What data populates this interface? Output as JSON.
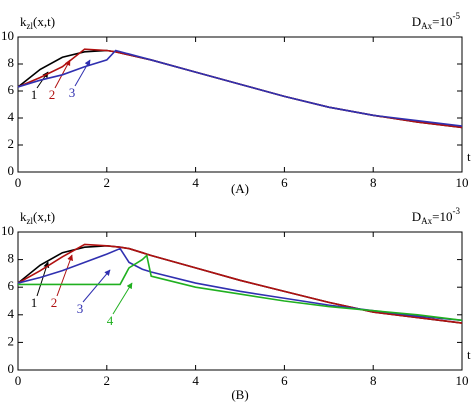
{
  "chart_data": [
    {
      "type": "line",
      "caption": "(A)",
      "ylabel": {
        "main": "k",
        "sub": "zl",
        "rest": "(x,t)"
      },
      "xlabel": "t",
      "annotation": {
        "main": "D",
        "sub": "Ax",
        "rest": "=10",
        "sup": "-5"
      },
      "xlim": [
        0,
        10
      ],
      "ylim": [
        0,
        10
      ],
      "xticks": [
        0,
        2,
        4,
        6,
        8,
        10
      ],
      "yticks": [
        0,
        2,
        4,
        6,
        8,
        10
      ],
      "x": [
        0,
        0.5,
        1,
        1.5,
        2,
        2.2,
        3,
        4,
        5,
        6,
        7,
        8,
        9,
        10
      ],
      "series": [
        {
          "name": "1",
          "color": "#000000",
          "values": [
            6.3,
            7.6,
            8.5,
            8.9,
            9.0,
            8.9,
            8.3,
            7.4,
            6.5,
            5.6,
            4.8,
            4.2,
            3.7,
            3.3
          ]
        },
        {
          "name": "2",
          "color": "#b01010",
          "values": [
            6.3,
            7.0,
            7.8,
            9.1,
            9.0,
            8.9,
            8.3,
            7.4,
            6.5,
            5.6,
            4.8,
            4.2,
            3.7,
            3.3
          ]
        },
        {
          "name": "3",
          "color": "#3030b0",
          "values": [
            6.3,
            6.8,
            7.2,
            7.8,
            8.3,
            9.0,
            8.3,
            7.4,
            6.5,
            5.6,
            4.8,
            4.2,
            3.8,
            3.4
          ]
        }
      ]
    },
    {
      "type": "line",
      "caption": "(B)",
      "ylabel": {
        "main": "k",
        "sub": "zl",
        "rest": "(x,t)"
      },
      "xlabel": "t",
      "annotation": {
        "main": "D",
        "sub": "Ax",
        "rest": "=10",
        "sup": "-3"
      },
      "xlim": [
        0,
        10
      ],
      "ylim": [
        0,
        10
      ],
      "xticks": [
        0,
        2,
        4,
        6,
        8,
        10
      ],
      "yticks": [
        0,
        2,
        4,
        6,
        8,
        10
      ],
      "x": [
        0,
        0.5,
        1,
        1.5,
        2,
        2.3,
        2.5,
        2.8,
        2.9,
        3,
        4,
        5,
        6,
        7,
        8,
        9,
        10
      ],
      "series": [
        {
          "name": "1",
          "color": "#000000",
          "values": [
            6.3,
            7.6,
            8.5,
            8.9,
            9.0,
            8.9,
            8.8,
            8.5,
            8.4,
            8.3,
            7.4,
            6.5,
            5.7,
            4.9,
            4.2,
            3.8,
            3.4
          ]
        },
        {
          "name": "2",
          "color": "#b01010",
          "values": [
            6.3,
            7.2,
            8.2,
            9.1,
            9.0,
            8.9,
            8.8,
            8.5,
            8.4,
            8.3,
            7.4,
            6.5,
            5.7,
            4.9,
            4.2,
            3.8,
            3.4
          ]
        },
        {
          "name": "3",
          "color": "#3030b0",
          "values": [
            6.3,
            6.7,
            7.2,
            7.8,
            8.4,
            8.8,
            7.8,
            7.3,
            7.2,
            7.1,
            6.3,
            5.7,
            5.2,
            4.7,
            4.3,
            3.9,
            3.6
          ]
        },
        {
          "name": "4",
          "color": "#20b020",
          "values": [
            6.2,
            6.2,
            6.2,
            6.2,
            6.2,
            6.2,
            7.4,
            8.0,
            8.3,
            6.8,
            6.0,
            5.5,
            5.0,
            4.6,
            4.3,
            4.0,
            3.6
          ]
        }
      ]
    }
  ]
}
